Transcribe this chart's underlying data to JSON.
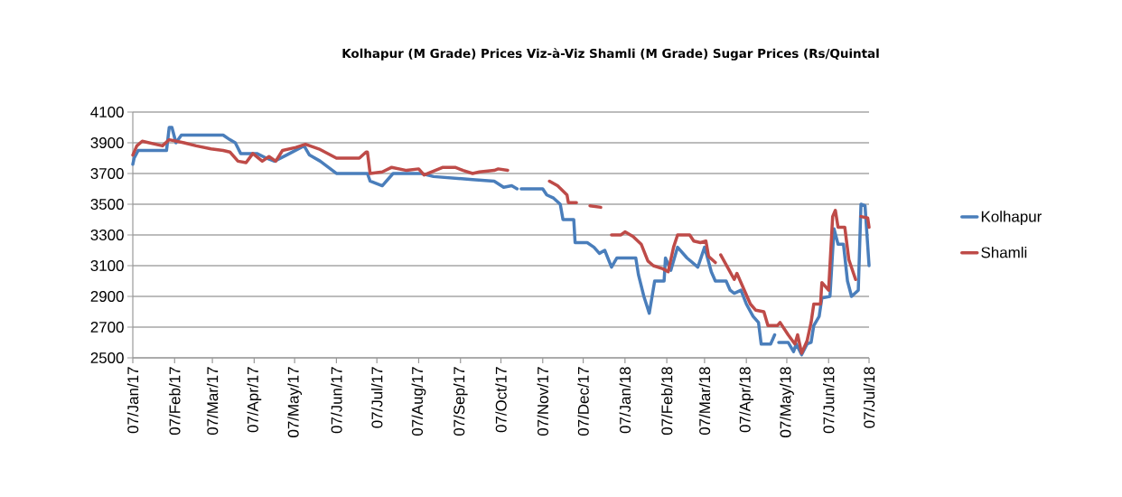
{
  "chart_data": {
    "type": "line",
    "title": "Kolhapur (M Grade) Prices Viz-à-Viz Shamli (M Grade) Sugar Prices (Rs/Quintal",
    "xlim": [
      "2017-01-07",
      "2018-07-07"
    ],
    "xticks": [
      {
        "value": "2017-01-07",
        "label": "07/Jan/17"
      },
      {
        "value": "2017-02-07",
        "label": "07/Feb/17"
      },
      {
        "value": "2017-03-07",
        "label": "07/Mar/17"
      },
      {
        "value": "2017-04-07",
        "label": "07/Apr/17"
      },
      {
        "value": "2017-05-07",
        "label": "07/May/17"
      },
      {
        "value": "2017-06-07",
        "label": "07/Jun/17"
      },
      {
        "value": "2017-07-07",
        "label": "07/Jul/17"
      },
      {
        "value": "2017-08-07",
        "label": "07/Aug/17"
      },
      {
        "value": "2017-09-07",
        "label": "07/Sep/17"
      },
      {
        "value": "2017-10-07",
        "label": "07/Oct/17"
      },
      {
        "value": "2017-11-07",
        "label": "07/Nov/17"
      },
      {
        "value": "2017-12-07",
        "label": "07/Dec/17"
      },
      {
        "value": "2018-01-07",
        "label": "07/Jan/18"
      },
      {
        "value": "2018-02-07",
        "label": "07/Feb/18"
      },
      {
        "value": "2018-03-07",
        "label": "07/Mar/18"
      },
      {
        "value": "2018-04-07",
        "label": "07/Apr/18"
      },
      {
        "value": "2018-05-07",
        "label": "07/May/18"
      },
      {
        "value": "2018-06-07",
        "label": "07/Jun/18"
      },
      {
        "value": "2018-07-07",
        "label": "07/Jul/18"
      }
    ],
    "ylim": [
      2500,
      4100
    ],
    "yticks": [
      2500,
      2700,
      2900,
      3100,
      3300,
      3500,
      3700,
      3900,
      4100
    ],
    "grid": "y",
    "legend": "right",
    "marker": "none",
    "line_style": "solid",
    "series": [
      {
        "name": "Kolhapur",
        "color": "#4a7ebb",
        "x": [
          "2017-01-07",
          "2017-01-08",
          "2017-01-11",
          "2017-02-01",
          "2017-02-03",
          "2017-02-05",
          "2017-02-08",
          "2017-02-12",
          "2017-03-15",
          "2017-03-20",
          "2017-03-24",
          "2017-03-28",
          "2017-04-09",
          "2017-04-16",
          "2017-04-22",
          "2017-05-01",
          "2017-05-14",
          "2017-05-18",
          "2017-05-26",
          "2017-06-07",
          "2017-06-30",
          "2017-07-02",
          "2017-07-11",
          "2017-07-19",
          "2017-08-09",
          "2017-08-18",
          "2017-09-16",
          "2017-10-02",
          "2017-10-09",
          "2017-10-15",
          "2017-10-19",
          "2017-10-20",
          "2017-10-22",
          "2017-11-07",
          "2017-11-10",
          "2017-11-15",
          "2017-11-20",
          "2017-11-22",
          "2017-11-30",
          "2017-12-01",
          "2017-12-10",
          "2017-12-15",
          "2017-12-19",
          "2017-12-23",
          "2017-12-28",
          "2018-01-01",
          "2018-01-15",
          "2018-01-17",
          "2018-01-21",
          "2018-01-25",
          "2018-01-29",
          "2018-02-05",
          "2018-02-06",
          "2018-02-10",
          "2018-02-15",
          "2018-02-22",
          "2018-03-02",
          "2018-03-07",
          "2018-03-12",
          "2018-03-15",
          "2018-03-23",
          "2018-03-26",
          "2018-03-29",
          "2018-04-03",
          "2018-04-07",
          "2018-04-12",
          "2018-04-16",
          "2018-04-18",
          "2018-04-25",
          "2018-04-28",
          "2018-04-29",
          "2018-05-01",
          "2018-05-08",
          "2018-05-12",
          "2018-05-14",
          "2018-05-18",
          "2018-05-22",
          "2018-05-25",
          "2018-05-27",
          "2018-05-31",
          "2018-06-02",
          "2018-06-08",
          "2018-06-11",
          "2018-06-14",
          "2018-06-18",
          "2018-06-21",
          "2018-06-24",
          "2018-06-29",
          "2018-07-01",
          "2018-07-04",
          "2018-07-07"
        ],
        "values": [
          3760,
          3800,
          3850,
          3850,
          4000,
          4000,
          3900,
          3950,
          3950,
          3920,
          3900,
          3830,
          3830,
          3800,
          3780,
          3820,
          3880,
          3820,
          3780,
          3700,
          3700,
          3650,
          3620,
          3700,
          3700,
          3680,
          3660,
          3650,
          3610,
          3620,
          3600,
          null,
          3600,
          3600,
          3560,
          3540,
          3500,
          3400,
          3400,
          3250,
          3250,
          3220,
          3180,
          3200,
          3090,
          3150,
          3150,
          3040,
          2900,
          2790,
          3000,
          3000,
          3150,
          3070,
          3220,
          3150,
          3090,
          3220,
          3060,
          3000,
          3000,
          2940,
          2920,
          2940,
          2850,
          2770,
          2730,
          2590,
          2590,
          2650,
          null,
          2600,
          2600,
          2540,
          2590,
          2520,
          2590,
          2600,
          2710,
          2770,
          2890,
          2900,
          3340,
          3240,
          3240,
          3000,
          2900,
          2940,
          3500,
          3490,
          3100
        ]
      },
      {
        "name": "Shamli",
        "color": "#be4b48",
        "x": [
          "2017-01-07",
          "2017-01-10",
          "2017-01-14",
          "2017-01-29",
          "2017-02-03",
          "2017-02-14",
          "2017-02-23",
          "2017-03-06",
          "2017-03-15",
          "2017-03-20",
          "2017-03-26",
          "2017-04-01",
          "2017-04-06",
          "2017-04-13",
          "2017-04-18",
          "2017-04-23",
          "2017-04-28",
          "2017-05-08",
          "2017-05-15",
          "2017-05-25",
          "2017-06-07",
          "2017-06-24",
          "2017-06-29",
          "2017-06-30",
          "2017-07-02",
          "2017-07-11",
          "2017-07-18",
          "2017-07-29",
          "2017-08-07",
          "2017-08-11",
          "2017-08-25",
          "2017-09-03",
          "2017-09-09",
          "2017-09-16",
          "2017-09-21",
          "2017-10-02",
          "2017-10-05",
          "2017-10-12",
          "2017-10-25",
          "2017-11-12",
          "2017-11-18",
          "2017-11-25",
          "2017-11-26",
          "2017-12-02",
          "2017-12-05",
          "2017-12-12",
          "2017-12-20",
          "2017-12-25",
          "2017-12-28",
          "2018-01-04",
          "2018-01-07",
          "2018-01-13",
          "2018-01-19",
          "2018-01-24",
          "2018-01-28",
          "2018-02-04",
          "2018-02-08",
          "2018-02-12",
          "2018-02-15",
          "2018-02-24",
          "2018-02-27",
          "2018-03-04",
          "2018-03-08",
          "2018-03-10",
          "2018-03-15",
          "2018-03-17",
          "2018-03-19",
          "2018-03-24",
          "2018-03-29",
          "2018-03-31",
          "2018-04-05",
          "2018-04-10",
          "2018-04-14",
          "2018-04-20",
          "2018-04-23",
          "2018-04-30",
          "2018-05-02",
          "2018-05-08",
          "2018-05-13",
          "2018-05-15",
          "2018-05-18",
          "2018-05-22",
          "2018-05-25",
          "2018-05-27",
          "2018-06-01",
          "2018-06-02",
          "2018-06-07",
          "2018-06-10",
          "2018-06-12",
          "2018-06-14",
          "2018-06-19",
          "2018-06-22",
          "2018-06-27",
          "2018-06-29",
          "2018-07-01",
          "2018-07-06",
          "2018-07-07"
        ],
        "values": [
          3820,
          3880,
          3910,
          3880,
          3920,
          3900,
          3880,
          3860,
          3850,
          3840,
          3780,
          3770,
          3830,
          3780,
          3810,
          3780,
          3850,
          3870,
          3890,
          3860,
          3800,
          3800,
          3840,
          3840,
          3700,
          3710,
          3740,
          3720,
          3730,
          3690,
          3740,
          3740,
          3720,
          3700,
          3710,
          3720,
          3730,
          3720,
          null,
          3650,
          3620,
          3560,
          3510,
          3510,
          null,
          3490,
          3480,
          null,
          3300,
          3300,
          3320,
          3290,
          3240,
          3130,
          3100,
          3080,
          3060,
          3220,
          3300,
          3300,
          3260,
          3250,
          3260,
          3160,
          3120,
          null,
          3170,
          3090,
          3010,
          3050,
          2950,
          2850,
          2810,
          2800,
          2710,
          2710,
          2730,
          2650,
          2590,
          2650,
          2530,
          2610,
          2730,
          2850,
          2850,
          2990,
          2940,
          3420,
          3460,
          3350,
          3350,
          3140,
          3010,
          null,
          3420,
          3410,
          3350
        ]
      }
    ]
  }
}
